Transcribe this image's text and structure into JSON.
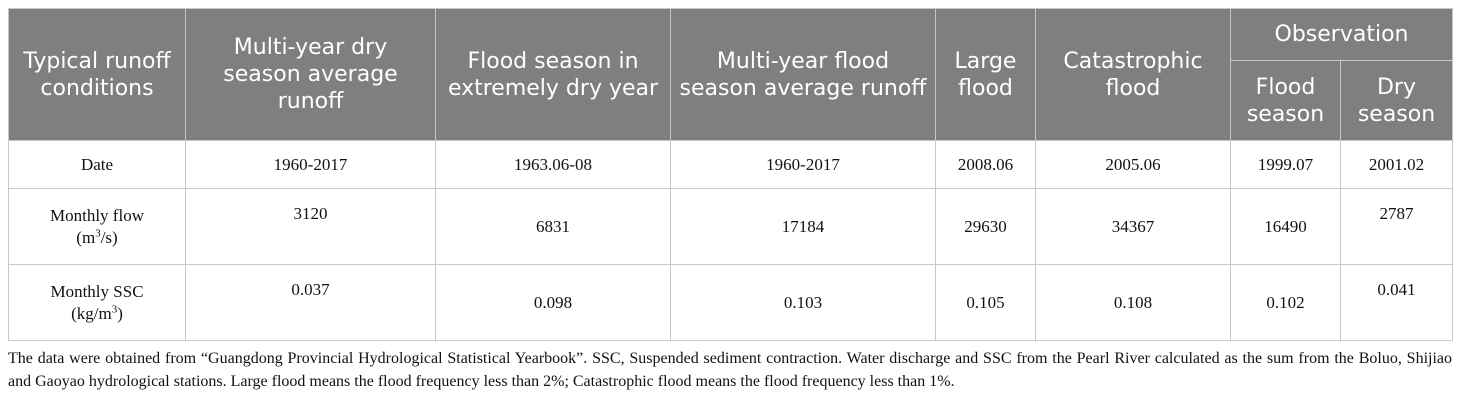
{
  "table": {
    "header": {
      "typical": "Typical runoff conditions",
      "columns": [
        "Multi-year dry season average runoff",
        "Flood season in extremely dry year",
        "Multi-year flood season average runoff",
        "Large flood",
        "Catastrophic flood"
      ],
      "group": "Observation",
      "subcolumns": [
        "Flood season",
        "Dry season"
      ]
    },
    "rows": [
      {
        "label": "Date",
        "values": [
          "1960-2017",
          "1963.06-08",
          "1960-2017",
          "2008.06",
          "2005.06",
          "1999.07",
          "2001.02"
        ]
      },
      {
        "label": "Monthly flow",
        "unit_pre": "(m",
        "unit_sup": "3",
        "unit_post": "/s)",
        "values": [
          3120,
          6831,
          17184,
          29630,
          34367,
          16490,
          2787
        ]
      },
      {
        "label": "Monthly SSC",
        "unit_pre": "(kg/m",
        "unit_sup": "3",
        "unit_post": ")",
        "values": [
          0.037,
          0.098,
          0.103,
          0.105,
          0.108,
          0.102,
          0.041
        ]
      }
    ]
  },
  "footnote": "The data were obtained from “Guangdong Provincial Hydrological Statistical Yearbook”. SSC, Suspended sediment contraction. Water discharge and SSC from the Pearl River calculated as the sum from the Boluo, Shijiao and Gaoyao hydrological stations. Large flood means the flood frequency less than 2%; Catastrophic flood means the flood frequency less than 1%."
}
